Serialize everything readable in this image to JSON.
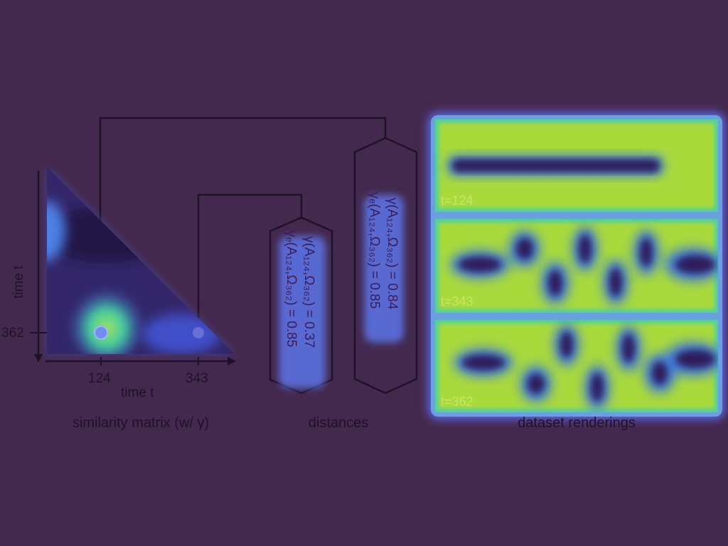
{
  "similarity_panel": {
    "caption": "similarity matrix (w/ γ)",
    "x_axis_title": "time t",
    "y_axis_title": "time t",
    "x_ticks": [
      "124",
      "343"
    ],
    "y_ticks": [
      "362"
    ]
  },
  "distances_panel": {
    "caption": "distances",
    "short_box": {
      "line1": "γ(A₁₂₄,Ω₃₆₂) = 0.37",
      "line2": "γₑ(A₁₂₄,Ω₃₆₂) = 0.85"
    },
    "tall_box": {
      "line1": "γ(A₁₂₄,Ω₃₆₂) = 0.84",
      "line2": "γₑ(A₁₂₄,Ω₃₆₂) = 0.85"
    }
  },
  "renderings_panel": {
    "caption": "dataset renderings",
    "frames": [
      {
        "label": "t=124"
      },
      {
        "label": "t=343"
      },
      {
        "label": "t=362"
      }
    ]
  },
  "colors": {
    "background": "#44294e",
    "field": "#a9da3c",
    "vortex": "#3c2474",
    "line": "#1e1226",
    "matrix_dark": "#2a1d5e",
    "matrix_mid": "#3b5bd6",
    "matrix_bright": "#5fe07a"
  }
}
